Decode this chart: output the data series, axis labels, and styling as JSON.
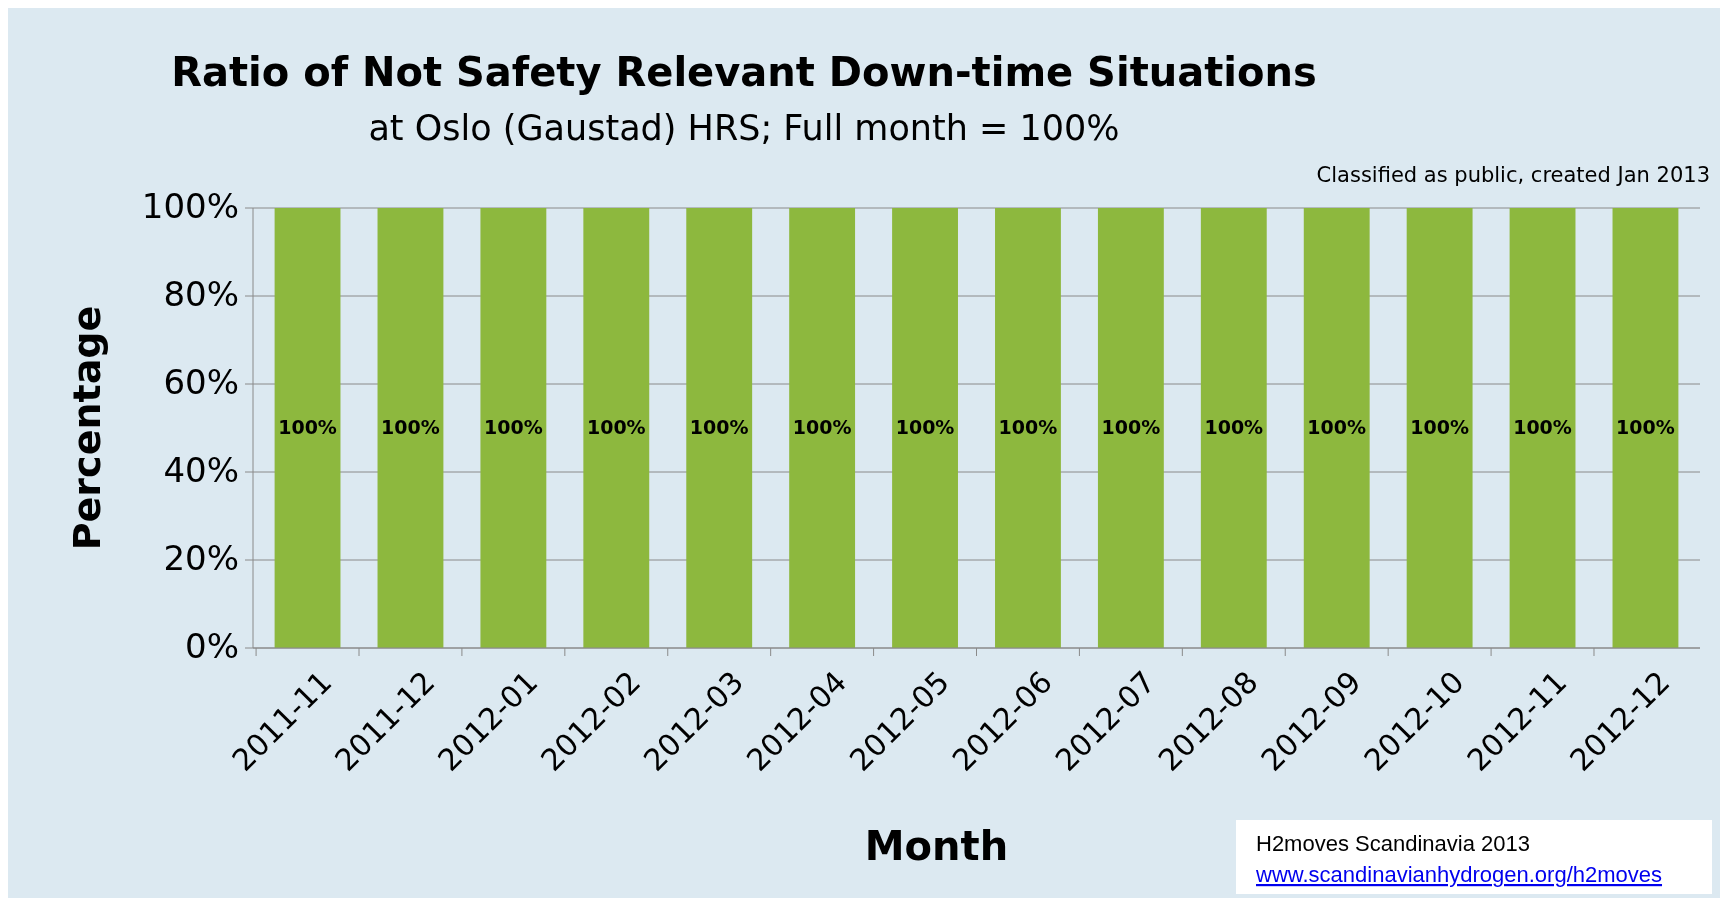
{
  "chart_data": {
    "type": "bar",
    "title": "Ratio of Not Safety Relevant Down-time Situations",
    "subtitle": "at Oslo (Gaustad) HRS; Full month = 100%",
    "xlabel": "Month",
    "ylabel": "Percentage",
    "categories": [
      "2011-11",
      "2011-12",
      "2012-01",
      "2012-02",
      "2012-03",
      "2012-04",
      "2012-05",
      "2012-06",
      "2012-07",
      "2012-08",
      "2012-09",
      "2012-10",
      "2012-11",
      "2012-12"
    ],
    "values": [
      100,
      100,
      100,
      100,
      100,
      100,
      100,
      100,
      100,
      100,
      100,
      100,
      100,
      100
    ],
    "value_labels": [
      "100%",
      "100%",
      "100%",
      "100%",
      "100%",
      "100%",
      "100%",
      "100%",
      "100%",
      "100%",
      "100%",
      "100%",
      "100%",
      "100%"
    ],
    "color": "#8db83e",
    "ylim": [
      0,
      100
    ],
    "yticks": [
      {
        "value": 0,
        "label": "0%"
      },
      {
        "value": 20,
        "label": "20%"
      },
      {
        "value": 40,
        "label": "40%"
      },
      {
        "value": 60,
        "label": "60%"
      },
      {
        "value": 80,
        "label": "80%"
      },
      {
        "value": 100,
        "label": "100%"
      }
    ],
    "grid": "y",
    "annotations": [
      "Classified as public, created Jan 2013",
      "H2moves Scandinavia 2013",
      "www.scandinavianhydrogen.org/h2moves"
    ]
  }
}
